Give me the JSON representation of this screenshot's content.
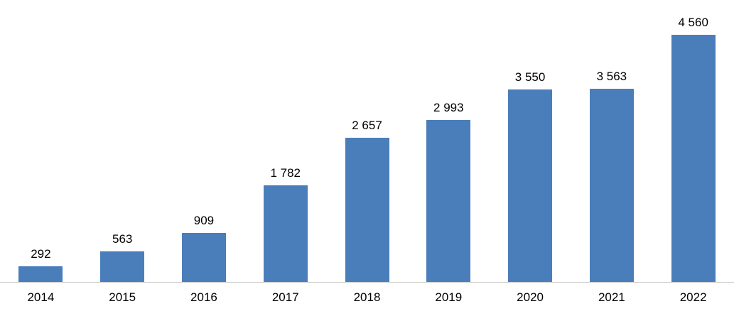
{
  "chart_data": {
    "type": "bar",
    "title": "",
    "xlabel": "",
    "ylabel": "",
    "categories": [
      "2014",
      "2015",
      "2016",
      "2017",
      "2018",
      "2019",
      "2020",
      "2021",
      "2022"
    ],
    "values": [
      292,
      563,
      909,
      1782,
      2657,
      2993,
      3550,
      3563,
      4560
    ],
    "value_labels": [
      "292",
      "563",
      "909",
      "1 782",
      "2 657",
      "2 993",
      "3 550",
      "3 563",
      "4 560"
    ],
    "ylim": [
      0,
      4700
    ],
    "grid": false,
    "legend": false,
    "bar_color": "#4a7ebb",
    "axis_line_color": "#c9c9c9",
    "label_color": "#000000"
  }
}
